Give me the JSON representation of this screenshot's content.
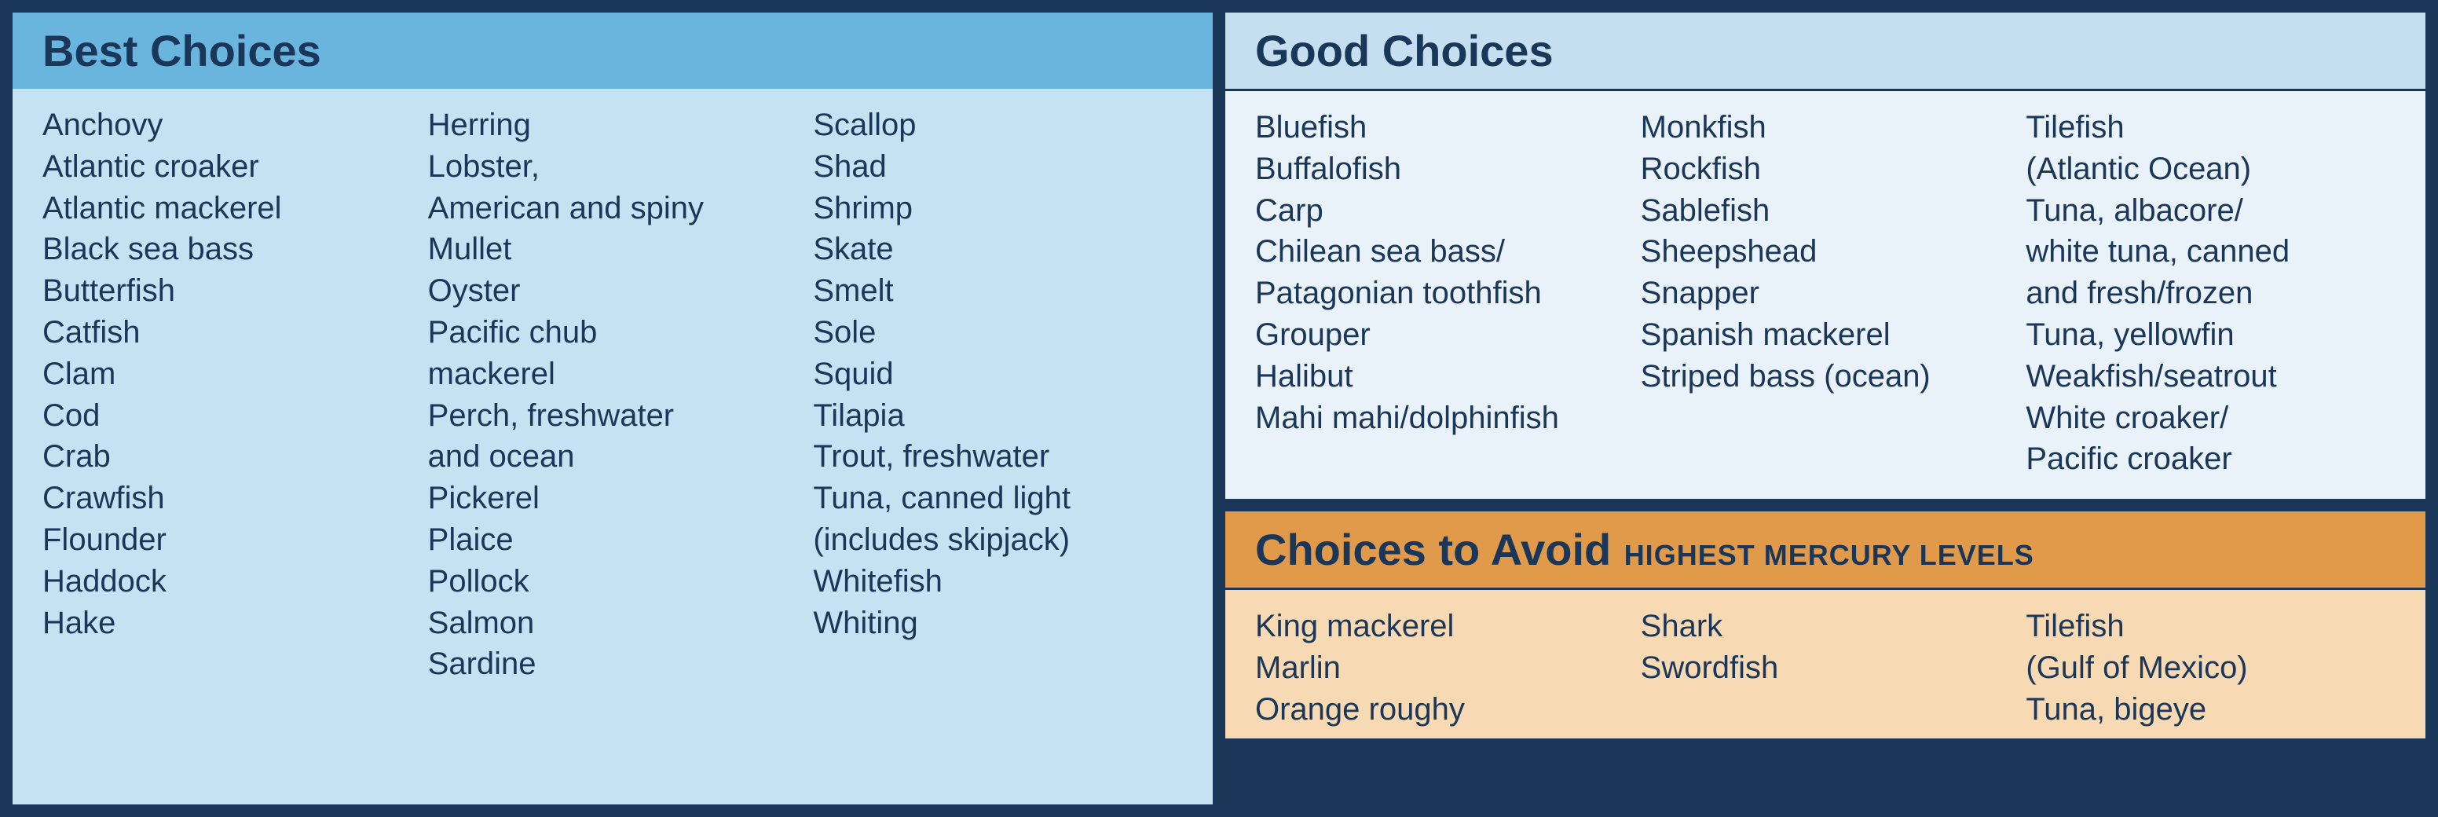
{
  "layout": {
    "outer_bg": "#1a3658",
    "text_color": "#1a3658",
    "item_fontsize": 40,
    "title_fontsize": 56,
    "subtitle_fontsize": 36
  },
  "best": {
    "title": "Best Choices",
    "header_bg": "#6ab5de",
    "body_bg": "#c5e2f2",
    "columns": [
      [
        "Anchovy",
        "Atlantic croaker",
        "Atlantic mackerel",
        "Black sea bass",
        "Butterfish",
        "Catfish",
        "Clam",
        "Cod",
        "Crab",
        "Crawfish",
        "Flounder",
        "Haddock",
        "Hake"
      ],
      [
        "Herring",
        "Lobster,\nAmerican and spiny",
        "Mullet",
        "Oyster",
        "Pacific chub\nmackerel",
        "Perch, freshwater\nand ocean",
        "Pickerel",
        "Plaice",
        "Pollock",
        "Salmon",
        "Sardine"
      ],
      [
        "Scallop",
        "Shad",
        "Shrimp",
        "Skate",
        "Smelt",
        "Sole",
        "Squid",
        "Tilapia",
        "Trout, freshwater",
        "Tuna, canned light\n(includes skipjack)",
        "Whitefish",
        "Whiting"
      ]
    ]
  },
  "good": {
    "title": "Good Choices",
    "header_bg": "#c5dff0",
    "body_bg": "#e8f2f8",
    "columns": [
      [
        "Bluefish",
        "Buffalofish",
        "Carp",
        "Chilean sea bass/\nPatagonian toothfish",
        "Grouper",
        "Halibut",
        "Mahi mahi/dolphinfish"
      ],
      [
        "Monkfish",
        "Rockfish",
        "Sablefish",
        "Sheepshead",
        "Snapper",
        "Spanish mackerel",
        "Striped bass (ocean)"
      ],
      [
        "Tilefish\n(Atlantic Ocean)",
        "Tuna, albacore/\nwhite tuna, canned\nand fresh/frozen",
        "Tuna, yellowfin",
        "Weakfish/seatrout",
        "White croaker/\nPacific croaker"
      ]
    ]
  },
  "avoid": {
    "title": "Choices to Avoid",
    "subtitle": "HIGHEST MERCURY LEVELS",
    "header_bg": "#e09a4a",
    "body_bg": "#f7d9b3",
    "columns": [
      [
        "King mackerel",
        "Marlin",
        "Orange roughy"
      ],
      [
        "Shark",
        "Swordfish"
      ],
      [
        "Tilefish\n(Gulf of Mexico)",
        "Tuna, bigeye"
      ]
    ]
  }
}
